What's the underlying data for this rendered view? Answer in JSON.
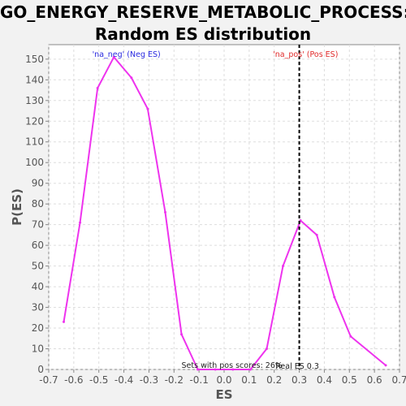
{
  "chart_data": {
    "type": "line",
    "title": [
      "GO_ENERGY_RESERVE_METABOLIC_PROCESS:",
      "Random ES distribution"
    ],
    "xlabel": "ES",
    "ylabel": "P(ES)",
    "xlim": [
      -0.7,
      0.7
    ],
    "ylim": [
      0,
      157
    ],
    "xticks": [
      -0.7,
      -0.6,
      -0.5,
      -0.4,
      -0.3,
      -0.2,
      -0.1,
      0.0,
      0.1,
      0.2,
      0.3,
      0.4,
      0.5,
      0.6,
      0.7
    ],
    "xtick_labels": [
      "-0.7",
      "-0.6",
      "-0.5",
      "-0.4",
      "-0.3",
      "-0.2",
      "-0.1",
      "0.0",
      "0.1",
      "0.2",
      "0.3",
      "0.4",
      "0.5",
      "0.6",
      "0.7"
    ],
    "yticks": [
      0,
      10,
      20,
      30,
      40,
      50,
      60,
      70,
      80,
      90,
      100,
      110,
      120,
      130,
      140,
      150
    ],
    "ytick_labels": [
      "0",
      "10",
      "20",
      "30",
      "40",
      "50",
      "60",
      "70",
      "80",
      "90",
      "100",
      "110",
      "120",
      "130",
      "140",
      "150"
    ],
    "grid": true,
    "series": [
      {
        "color": "#ee33ee",
        "points": [
          {
            "x": -0.64,
            "y": 23
          },
          {
            "x": -0.575,
            "y": 71
          },
          {
            "x": -0.505,
            "y": 136
          },
          {
            "x": -0.44,
            "y": 151
          },
          {
            "x": -0.37,
            "y": 141
          },
          {
            "x": -0.305,
            "y": 126
          },
          {
            "x": -0.235,
            "y": 76
          },
          {
            "x": -0.17,
            "y": 17
          },
          {
            "x": -0.105,
            "y": 0
          },
          {
            "x": -0.035,
            "y": 0
          },
          {
            "x": 0.035,
            "y": 0
          },
          {
            "x": 0.105,
            "y": 0
          },
          {
            "x": 0.17,
            "y": 10
          },
          {
            "x": 0.235,
            "y": 50
          },
          {
            "x": 0.305,
            "y": 72
          },
          {
            "x": 0.37,
            "y": 65
          },
          {
            "x": 0.44,
            "y": 35
          },
          {
            "x": 0.505,
            "y": 16
          },
          {
            "x": 0.645,
            "y": 2
          }
        ]
      }
    ],
    "real_es": 0.3,
    "annotations": {
      "neg_label": "'na_neg' (Neg ES)",
      "pos_label": "'na_pos' (Pos ES)",
      "pos_scores_text": "Sets with pos scores: 26%",
      "real_es_text": "Real ES 0.3"
    },
    "colors": {
      "line": "#ee33ee",
      "neg_label": "#2a2ae0",
      "pos_label": "#e02a2a",
      "grid": "#dddddd",
      "plot_bg": "#ffffff",
      "page_bg": "#f2f2f2"
    }
  }
}
